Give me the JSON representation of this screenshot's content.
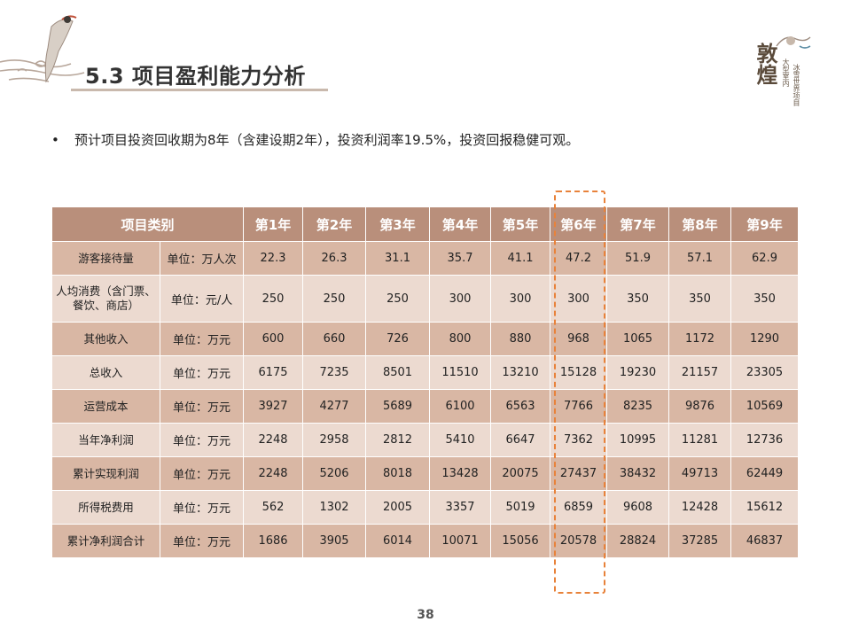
{
  "slide": {
    "title": "5.3 项目盈利能力分析",
    "bullet": "预计项目投资回收期为8年（含建设期2年），投资利润率19.5%，投资回报稳健可观。",
    "page_number": "38",
    "logo": {
      "main_text": "敦煌",
      "side_text_1": "大型室内",
      "side_text_2": "冰雪世界项目"
    },
    "colors": {
      "header": "#b98f7b",
      "row_dark": "#d9b7a4",
      "row_light": "#ecdad0",
      "highlight": "#e8823a"
    }
  },
  "table": {
    "header": [
      "项目类别",
      "第1年",
      "第2年",
      "第3年",
      "第4年",
      "第5年",
      "第6年",
      "第7年",
      "第8年",
      "第9年"
    ],
    "rows": [
      {
        "name": "游客接待量",
        "unit": "单位：万人次",
        "values": [
          "22.3",
          "26.3",
          "31.1",
          "35.7",
          "41.1",
          "47.2",
          "51.9",
          "57.1",
          "62.9"
        ]
      },
      {
        "name": "人均消费（含门票、餐饮、商店）",
        "unit": "单位：元/人",
        "values": [
          "250",
          "250",
          "250",
          "300",
          "300",
          "300",
          "350",
          "350",
          "350"
        ]
      },
      {
        "name": "其他收入",
        "unit": "单位：万元",
        "values": [
          "600",
          "660",
          "726",
          "800",
          "880",
          "968",
          "1065",
          "1172",
          "1290"
        ]
      },
      {
        "name": "总收入",
        "unit": "单位：万元",
        "values": [
          "6175",
          "7235",
          "8501",
          "11510",
          "13210",
          "15128",
          "19230",
          "21157",
          "23305"
        ]
      },
      {
        "name": "运营成本",
        "unit": "单位：万元",
        "values": [
          "3927",
          "4277",
          "5689",
          "6100",
          "6563",
          "7766",
          "8235",
          "9876",
          "10569"
        ]
      },
      {
        "name": "当年净利润",
        "unit": "单位：万元",
        "values": [
          "2248",
          "2958",
          "2812",
          "5410",
          "6647",
          "7362",
          "10995",
          "11281",
          "12736"
        ]
      },
      {
        "name": "累计实现利润",
        "unit": "单位：万元",
        "values": [
          "2248",
          "5206",
          "8018",
          "13428",
          "20075",
          "27437",
          "38432",
          "49713",
          "62449"
        ]
      },
      {
        "name": "所得税费用",
        "unit": "单位：万元",
        "values": [
          "562",
          "1302",
          "2005",
          "3357",
          "5019",
          "6859",
          "9608",
          "12428",
          "15612"
        ]
      },
      {
        "name": "累计净利润合计",
        "unit": "单位：万元",
        "values": [
          "1686",
          "3905",
          "6014",
          "10071",
          "15056",
          "20578",
          "28824",
          "37285",
          "46837"
        ]
      }
    ]
  }
}
